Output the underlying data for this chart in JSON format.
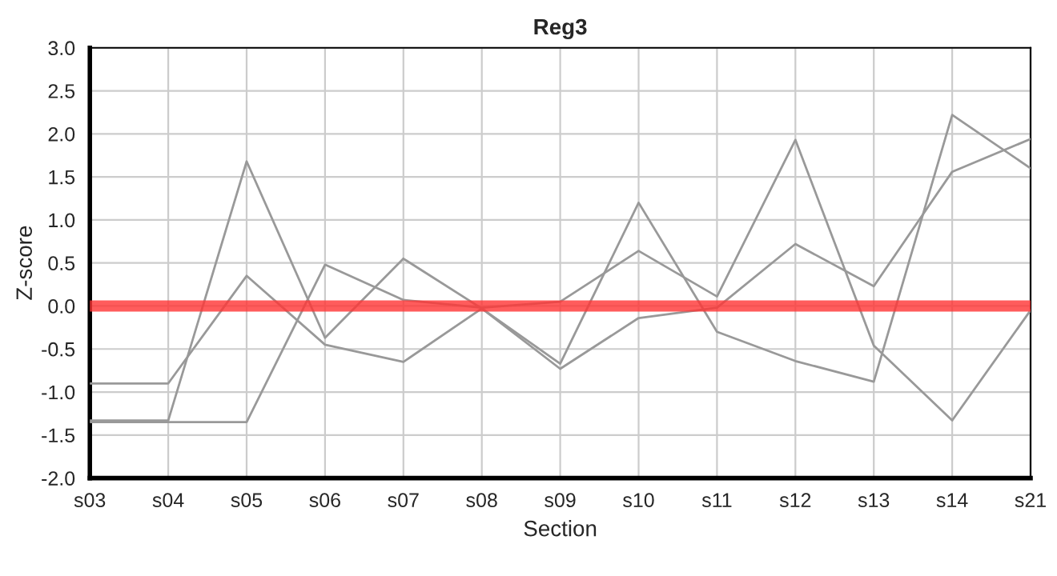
{
  "chart_data": {
    "type": "line",
    "title": "Reg3",
    "xlabel": "Section",
    "ylabel": "Z-score",
    "categories": [
      "s03",
      "s04",
      "s05",
      "s06",
      "s07",
      "s08",
      "s09",
      "s10",
      "s11",
      "s12",
      "s13",
      "s14",
      "s21"
    ],
    "series": [
      {
        "color": "#999999",
        "values": [
          -0.9,
          -0.9,
          0.35,
          -0.45,
          -0.65,
          -0.03,
          -0.73,
          -0.14,
          -0.02,
          0.72,
          0.23,
          1.56,
          1.94
        ]
      },
      {
        "color": "#999999",
        "values": [
          -1.33,
          -1.33,
          1.68,
          -0.37,
          0.55,
          -0.03,
          -0.67,
          1.2,
          -0.3,
          -0.64,
          -0.88,
          2.22,
          1.6
        ]
      },
      {
        "color": "#999999",
        "values": [
          -1.35,
          -1.35,
          -1.35,
          0.48,
          0.07,
          -0.02,
          0.05,
          0.64,
          0.11,
          1.93,
          -0.46,
          -1.33,
          -0.05
        ]
      }
    ],
    "ylim": [
      -2.0,
      3.0
    ],
    "yticks": [
      {
        "value": -2.0,
        "label": "-2.0"
      },
      {
        "value": -1.5,
        "label": "-1.5"
      },
      {
        "value": -1.0,
        "label": "-1.0"
      },
      {
        "value": -0.5,
        "label": "-0.5"
      },
      {
        "value": 0.0,
        "label": "0.0"
      },
      {
        "value": 0.5,
        "label": "0.5"
      },
      {
        "value": 1.0,
        "label": "1.0"
      },
      {
        "value": 1.5,
        "label": "1.5"
      },
      {
        "value": 2.0,
        "label": "2.0"
      },
      {
        "value": 2.5,
        "label": "2.5"
      },
      {
        "value": 3.0,
        "label": "3.0"
      }
    ],
    "ref_lines": [
      {
        "axis": "y",
        "value": 0,
        "color": "#ff3333"
      }
    ],
    "grid": true,
    "legend": false,
    "marker": "none",
    "line_style": "solid"
  }
}
